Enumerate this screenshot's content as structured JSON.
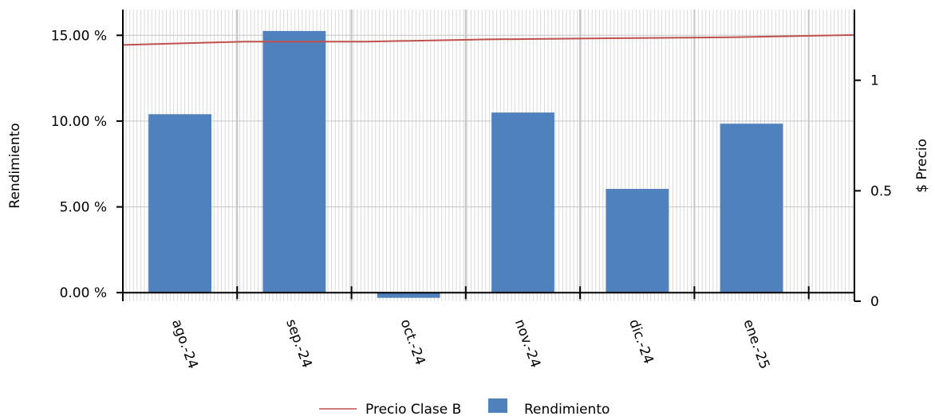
{
  "chart_data": {
    "type": "bar",
    "categories": [
      "ago.-24",
      "sep.-24",
      "oct.-24",
      "nov.-24",
      "dic.-24",
      "ene.-25"
    ],
    "series": [
      {
        "name": "Rendimiento",
        "type": "bar",
        "axis": "left",
        "color": "#4f81bd",
        "values": [
          10.4,
          15.25,
          -0.3,
          10.5,
          6.05,
          9.85
        ]
      },
      {
        "name": "Precio Clase B",
        "type": "line",
        "axis": "right",
        "color": "#c0504d",
        "x": [
          0,
          1,
          2,
          3,
          4,
          5,
          6
        ],
        "values": [
          1.16,
          1.175,
          1.175,
          1.185,
          1.19,
          1.195,
          1.205
        ]
      }
    ],
    "ylabel": "Rendimiento",
    "ylim": [
      -0.5,
      16.5
    ],
    "yticks": [
      0,
      5,
      10,
      15
    ],
    "ytick_labels": [
      "0.00 %",
      "5.00 %",
      "10.00 %",
      "15.00 %"
    ],
    "y2label": "$ Precio",
    "y2lim": [
      0,
      1.32
    ],
    "y2ticks": [
      0,
      0.5,
      1
    ],
    "y2tick_labels": [
      "0",
      "0.5",
      "1"
    ],
    "grid": true,
    "legend_position": "bottom-center",
    "legend": [
      {
        "label": "Precio Clase B",
        "kind": "line",
        "color": "#c0504d"
      },
      {
        "label": "Rendimiento",
        "kind": "box",
        "color": "#4f81bd"
      }
    ]
  }
}
